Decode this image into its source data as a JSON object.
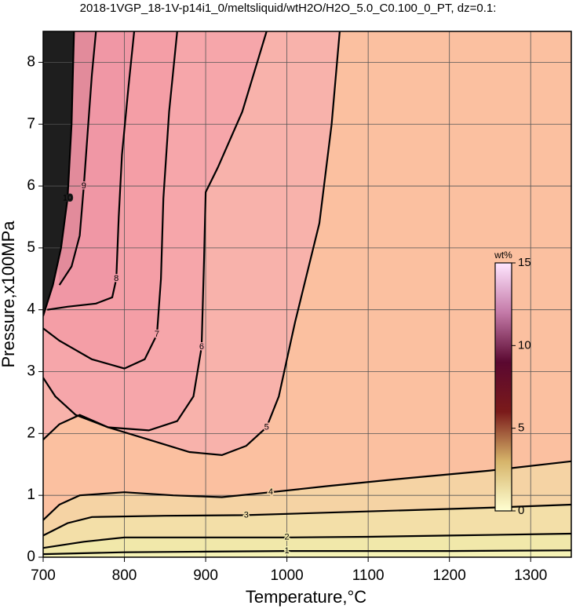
{
  "chart_data": {
    "type": "contour",
    "title": "2018-1VGP_18-1V-p14i1_0/meltsliquid/wtH2O/H2O_5.0_C0.100_0_PT, dz=0.1:",
    "x_label": "Temperature,°C",
    "y_label": "Pressure,x100MPa",
    "xlim": [
      700,
      1350
    ],
    "ylim": [
      0,
      8.5
    ],
    "xticks": [
      700,
      800,
      900,
      1000,
      1100,
      1200,
      1300
    ],
    "yticks": [
      0,
      1,
      2,
      3,
      4,
      5,
      6,
      7,
      8
    ],
    "grid": true,
    "background": "#fbc0a0",
    "series": [
      {
        "level": 4,
        "color": "#000000",
        "fill": "#f5d3a4",
        "x": [
          700,
          720,
          745,
          800,
          860,
          920,
          980,
          1050,
          1150,
          1250,
          1350
        ],
        "y": [
          0.6,
          0.85,
          1.0,
          1.05,
          1.0,
          0.97,
          1.05,
          1.15,
          1.28,
          1.4,
          1.55
        ]
      },
      {
        "level": 3,
        "color": "#000000",
        "fill": "#f3dfa8",
        "x": [
          700,
          730,
          760,
          850,
          950,
          1050,
          1150,
          1250,
          1350
        ],
        "y": [
          0.35,
          0.55,
          0.65,
          0.67,
          0.68,
          0.72,
          0.76,
          0.8,
          0.85
        ]
      },
      {
        "level": 2,
        "color": "#000000",
        "fill": "#f1e8aa",
        "x": [
          700,
          750,
          800,
          900,
          1000,
          1100,
          1200,
          1350
        ],
        "y": [
          0.15,
          0.25,
          0.32,
          0.32,
          0.32,
          0.33,
          0.35,
          0.38
        ]
      },
      {
        "level": 1,
        "color": "#000000",
        "fill": "#f6f3b6",
        "x": [
          700,
          800,
          900,
          1000,
          1200,
          1350
        ],
        "y": [
          0.05,
          0.08,
          0.09,
          0.1,
          0.1,
          0.11
        ]
      },
      {
        "level": 5,
        "color": "#000000",
        "fill": "#f8b2ab",
        "x": [
          700,
          720,
          745,
          780,
          830,
          880,
          920,
          950,
          975,
          990,
          1000,
          1010,
          1025,
          1040,
          1055,
          1065
        ],
        "y": [
          1.9,
          2.15,
          2.3,
          2.1,
          1.9,
          1.7,
          1.65,
          1.8,
          2.1,
          2.6,
          3.2,
          3.8,
          4.6,
          5.4,
          7.0,
          8.5
        ]
      },
      {
        "level": 6,
        "color": "#000000",
        "fill": "#f6a6aa",
        "x": [
          700,
          715,
          740,
          780,
          830,
          865,
          885,
          895,
          898,
          900,
          915,
          945,
          975
        ],
        "y": [
          2.9,
          2.6,
          2.3,
          2.1,
          2.05,
          2.2,
          2.6,
          3.4,
          4.8,
          5.9,
          6.3,
          7.2,
          8.5
        ]
      },
      {
        "level": 7,
        "color": "#000000",
        "fill": "#f49ea6",
        "x": [
          700,
          720,
          760,
          800,
          825,
          840,
          845,
          848,
          855,
          865
        ],
        "y": [
          3.7,
          3.5,
          3.2,
          3.05,
          3.2,
          3.6,
          4.5,
          5.8,
          7.2,
          8.5
        ]
      },
      {
        "level": 8,
        "color": "#000000",
        "fill": "#f097a5",
        "x": [
          705,
          730,
          765,
          785,
          790,
          793,
          797,
          805,
          812
        ],
        "y": [
          4.0,
          4.05,
          4.1,
          4.2,
          4.5,
          5.5,
          6.5,
          7.6,
          8.5
        ]
      },
      {
        "level": 9,
        "color": "#000000",
        "fill": "#e28b9b",
        "x": [
          720,
          735,
          745,
          750,
          755,
          760,
          765
        ],
        "y": [
          4.4,
          4.7,
          5.2,
          6.0,
          6.9,
          7.8,
          8.5
        ]
      },
      {
        "level": 10,
        "color": "#000000",
        "fill": "#1e1e1e",
        "x": [
          700,
          712,
          722,
          730,
          735,
          738
        ],
        "y": [
          3.9,
          4.4,
          5.0,
          5.8,
          7.0,
          8.5
        ]
      }
    ],
    "colorbar": {
      "label": "wt%",
      "lim": [
        0,
        15
      ],
      "ticks": [
        0,
        5,
        10,
        15
      ],
      "colors": [
        "#ffffd2",
        "#d6b46a",
        "#7a1a1a",
        "#5a0830",
        "#c47aa8",
        "#ffe6ff"
      ]
    }
  }
}
